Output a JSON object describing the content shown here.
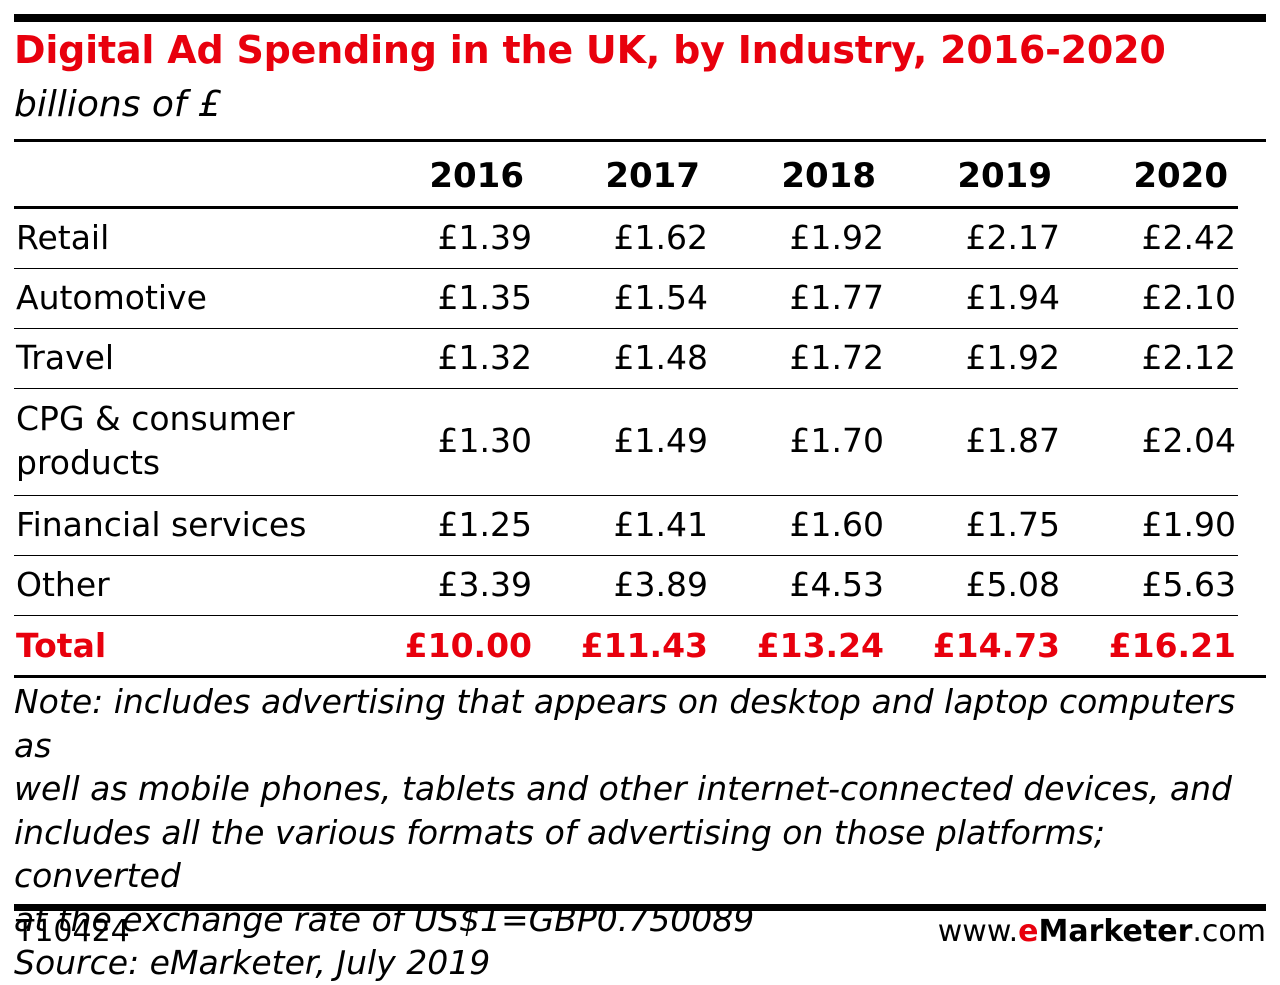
{
  "chart_data": {
    "type": "table",
    "title": "Digital Ad Spending in the UK, by Industry, 2016-2020",
    "subtitle": "billions of £",
    "columns": [
      "2016",
      "2017",
      "2018",
      "2019",
      "2020"
    ],
    "rows": [
      {
        "label": "Retail",
        "values": [
          "£1.39",
          "£1.62",
          "£1.92",
          "£2.17",
          "£2.42"
        ]
      },
      {
        "label": "Automotive",
        "values": [
          "£1.35",
          "£1.54",
          "£1.77",
          "£1.94",
          "£2.10"
        ]
      },
      {
        "label": "Travel",
        "values": [
          "£1.32",
          "£1.48",
          "£1.72",
          "£1.92",
          "£2.12"
        ]
      },
      {
        "label_line1": "CPG & consumer",
        "label_line2": "products",
        "values": [
          "£1.30",
          "£1.49",
          "£1.70",
          "£1.87",
          "£2.04"
        ]
      },
      {
        "label": "Financial services",
        "values": [
          "£1.25",
          "£1.41",
          "£1.60",
          "£1.75",
          "£1.90"
        ]
      },
      {
        "label": "Other",
        "values": [
          "£3.39",
          "£3.89",
          "£4.53",
          "£5.08",
          "£5.63"
        ]
      },
      {
        "label": "Total",
        "values": [
          "£10.00",
          "£11.43",
          "£13.24",
          "£14.73",
          "£16.21"
        ]
      }
    ],
    "note": "Note: includes advertising that appears on desktop and laptop computers as\nwell as mobile phones, tablets and other internet-connected devices, and\nincludes all the various formats of advertising on those platforms; converted\nat the exchange rate of US$1=GBP0.750089",
    "source": "Source: eMarketer, July 2019",
    "colors": {
      "accent": "#e8000d",
      "text": "#000000"
    }
  },
  "footer": {
    "id": "T10424",
    "brand_prefix": "www.",
    "brand_accent": "e",
    "brand_name": "Marketer",
    "brand_suffix": ".com"
  }
}
